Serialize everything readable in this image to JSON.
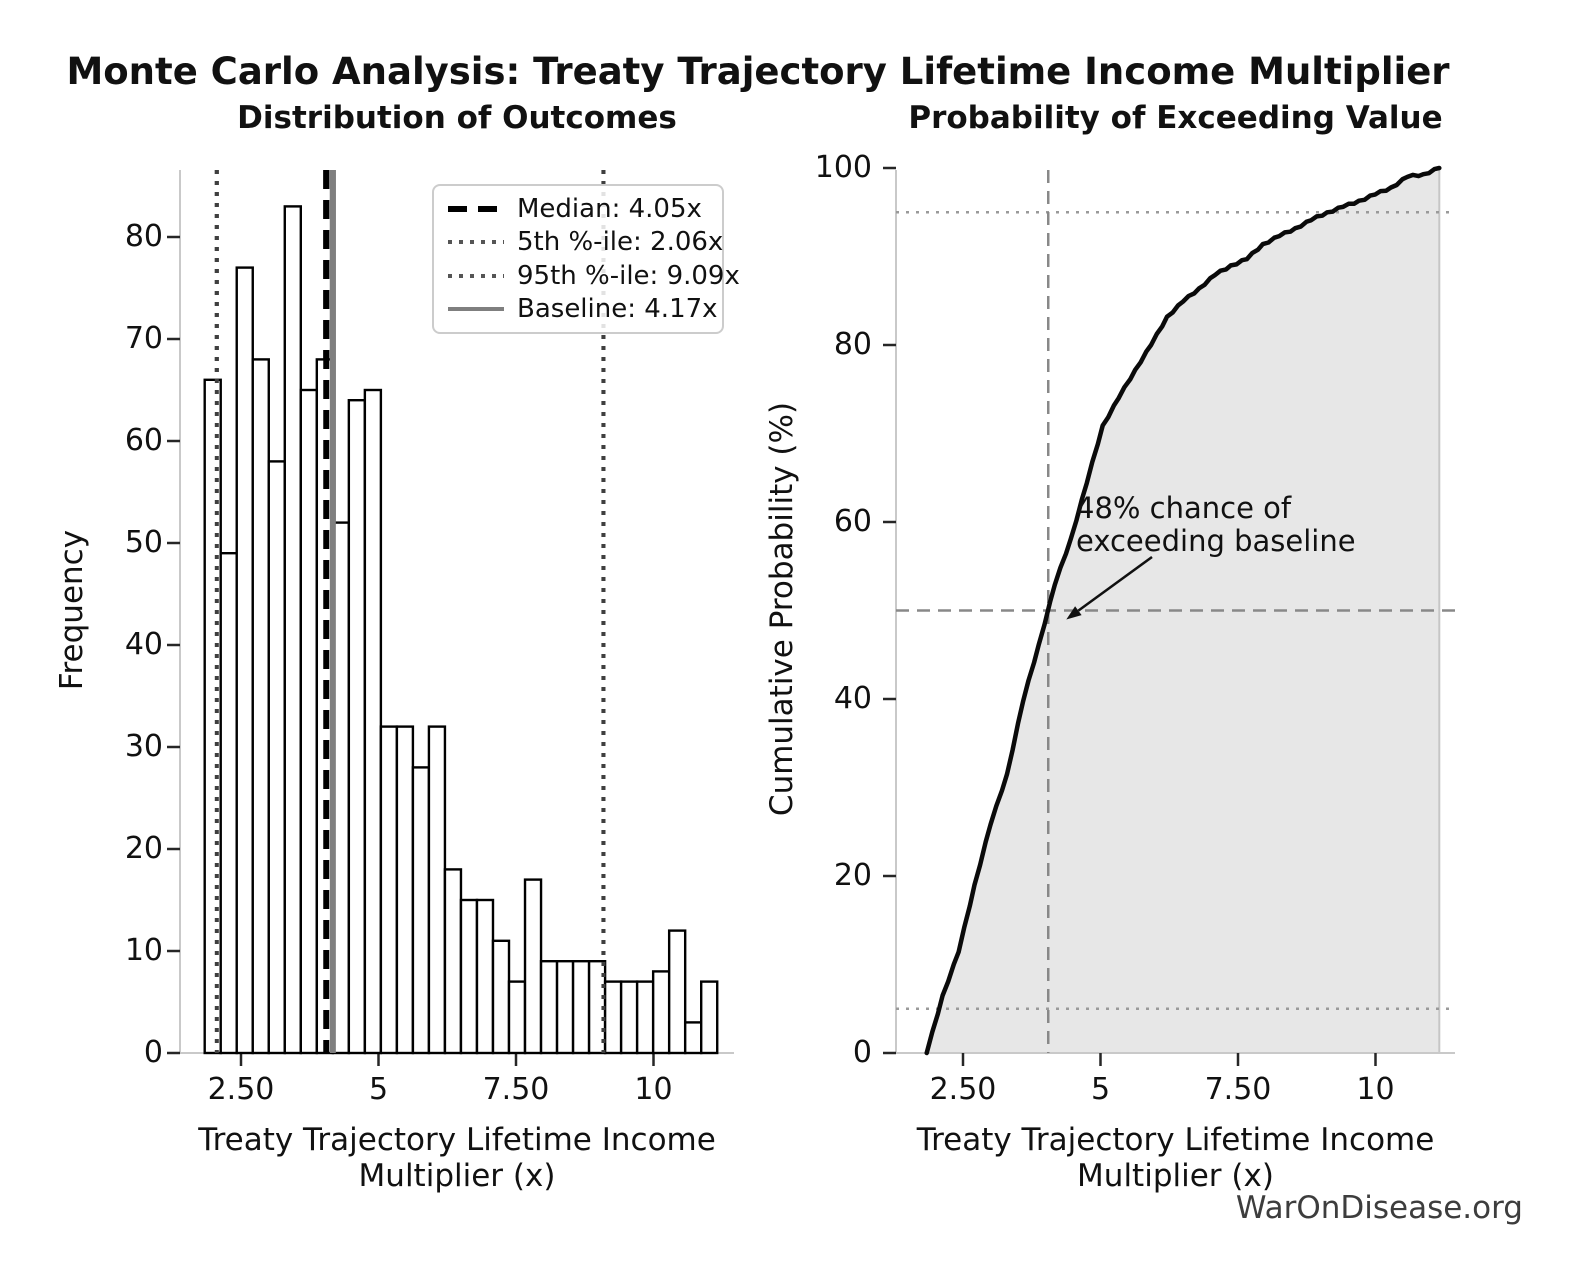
{
  "main_title": "Monte Carlo Analysis: Treaty Trajectory Lifetime Income Multiplier",
  "watermark": "WarOnDisease.org",
  "colors": {
    "bar_fill": "#ffffff",
    "bar_edge": "#000000",
    "median_line": "#000000",
    "percentile_line": "#3f3f3f",
    "baseline_line": "#7f7f7f",
    "cdf_curve": "#0a0a0a",
    "cdf_fill": "#e7e7e7",
    "cdf_fill_edge": "#c6c6c6",
    "ref_dotted": "#9a9a9a",
    "ref_dashed": "#888888",
    "spine": "#c9c9c9",
    "tick_mark": "#262626",
    "text": "#111111"
  },
  "chart_data": [
    {
      "type": "bar",
      "subtype": "histogram",
      "title": "Distribution of Outcomes",
      "xlabel": "Treaty Trajectory Lifetime Income Multiplier (x)",
      "ylabel": "Frequency",
      "bin_start": 1.84,
      "bin_width": 0.2912,
      "frequencies": [
        66,
        49,
        77,
        68,
        58,
        83,
        65,
        68,
        52,
        64,
        65,
        32,
        32,
        28,
        32,
        18,
        15,
        15,
        11,
        7,
        17,
        9,
        9,
        9,
        9,
        7,
        7,
        7,
        8,
        12,
        3,
        7
      ],
      "xlim": [
        1.43,
        11.45
      ],
      "ylim": [
        0,
        86.5
      ],
      "grid": false,
      "x_tick_labels": [
        "2.50",
        "5",
        "7.50",
        "10"
      ],
      "x_tick_values": [
        2.5,
        5,
        7.5,
        10
      ],
      "y_tick_values": [
        0,
        10,
        20,
        30,
        40,
        50,
        60,
        70,
        80
      ],
      "markers": {
        "median_x": 4.05,
        "p5_x": 2.06,
        "p95_x": 9.09,
        "baseline_x": 4.17
      },
      "legend_position": "upper right",
      "legend": [
        {
          "label": "Median: 4.05x",
          "style": "dashed-black"
        },
        {
          "label": "5th %-ile: 2.06x",
          "style": "dotted-dark"
        },
        {
          "label": "95th %-ile: 9.09x",
          "style": "dotted-dark"
        },
        {
          "label": "Baseline: 4.17x",
          "style": "solid-gray"
        }
      ]
    },
    {
      "type": "line",
      "subtype": "cdf",
      "title": "Probability of Exceeding Value",
      "xlabel": "Treaty Trajectory Lifetime Income Multiplier (x)",
      "ylabel": "Cumulative Probability (%)",
      "x": [
        1.84,
        2.13,
        2.42,
        2.71,
        3.0,
        3.3,
        3.59,
        3.88,
        4.17,
        4.46,
        4.75,
        5.04,
        5.33,
        5.63,
        5.92,
        6.21,
        6.5,
        6.79,
        7.08,
        7.37,
        7.66,
        7.95,
        8.25,
        8.54,
        8.83,
        9.12,
        9.41,
        9.7,
        9.99,
        10.28,
        10.58,
        10.87,
        11.16
      ],
      "y": [
        0,
        6.5,
        11.4,
        19.0,
        25.8,
        31.5,
        39.7,
        46.2,
        52.9,
        58.1,
        64.4,
        70.9,
        74.0,
        77.2,
        80.0,
        83.2,
        84.9,
        86.4,
        87.9,
        89.0,
        89.7,
        91.4,
        92.3,
        93.2,
        94.1,
        95.0,
        95.6,
        96.3,
        97.0,
        97.8,
        99.0,
        99.3,
        100.0
      ],
      "fill_under_curve": true,
      "xlim": [
        1.43,
        11.45
      ],
      "ylim": [
        0,
        100
      ],
      "grid": false,
      "x_tick_labels": [
        "2.50",
        "5",
        "7.50",
        "10"
      ],
      "x_tick_values": [
        2.5,
        5,
        7.5,
        10
      ],
      "y_tick_values": [
        0,
        20,
        40,
        60,
        80,
        100
      ],
      "ref_lines": {
        "h_dotted": [
          5,
          95
        ],
        "h_dashed": 50,
        "v_dashed": 4.05
      },
      "annotation": {
        "line1": "48% chance of",
        "line2": "exceeding baseline",
        "arrow_target_x": 4.05,
        "arrow_target_y": 50
      }
    }
  ]
}
